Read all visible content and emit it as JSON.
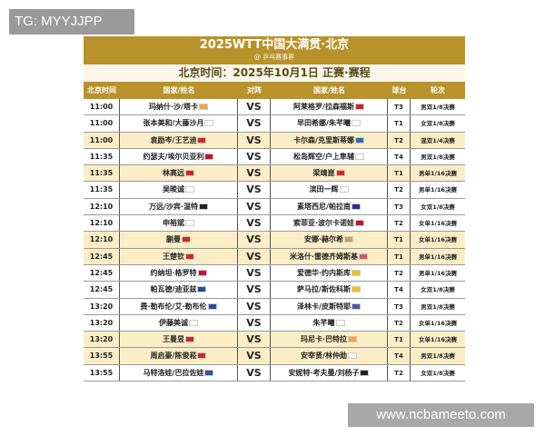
{
  "watermark": "TG: MYYJJPP",
  "site": "www.ncbameeto.com",
  "title": "2025WTT中国大满贯·北京",
  "credit": "@ 乒乓赛事界",
  "date_line": "北京时间：2025年10月1日 正赛·赛程",
  "headers": [
    "北京时间",
    "国家/姓名",
    "对阵",
    "国家/姓名",
    "球台",
    "轮次"
  ],
  "colors": {
    "gold": "#b8922a",
    "highlight": "#fbeec7"
  },
  "rows": [
    {
      "time": "11:00",
      "p1": "玛纳什·沙/塔卡",
      "f1": "#f4a340",
      "vs": "VS",
      "p2": "阿莱格罗/拉森福斯",
      "f2": "#d0202a",
      "table": "T3",
      "round": "男双1/8决赛",
      "hl": false
    },
    {
      "time": "11:00",
      "p1": "张本美和/大藤沙月",
      "f1": "#ffffff",
      "vs": "VS",
      "p2": "早田希娜/朱芊曦",
      "f2": "#ffffff",
      "table": "T1",
      "round": "女双1/8决赛",
      "hl": false
    },
    {
      "time": "11:00",
      "p1": "袁励岑/王艺迪",
      "f1": "#d8261c",
      "vs": "VS",
      "p2": "卡尔森/克里斯蒂娜",
      "f2": "#2a6fb0",
      "table": "T2",
      "round": "混双1/4决赛",
      "hl": true
    },
    {
      "time": "11:35",
      "p1": "约瑟夫/埃尔贝亚利",
      "f1": "#c8102e",
      "vs": "VS",
      "p2": "松岛辉空/户上隼辅",
      "f2": "#ffffff",
      "table": "T4",
      "round": "男双1/8决赛",
      "hl": false
    },
    {
      "time": "11:35",
      "p1": "林高远",
      "f1": "#d8261c",
      "vs": "VS",
      "p2": "梁靖崑",
      "f2": "#d8261c",
      "table": "T1",
      "round": "男单1/16决赛",
      "hl": true
    },
    {
      "time": "11:35",
      "p1": "吴晙诚",
      "f1": "#ffffff",
      "vs": "VS",
      "p2": "滨田一辉",
      "f2": "#ffffff",
      "table": "T2",
      "round": "男单1/16决赛",
      "hl": false
    },
    {
      "time": "12:10",
      "p1": "万远/沙宾·温特",
      "f1": "#222222",
      "vs": "VS",
      "p2": "素塔西尼/帕拉南",
      "f2": "#2d2a8a",
      "table": "T3",
      "round": "女双1/8决赛",
      "hl": false
    },
    {
      "time": "12:10",
      "p1": "申裕斌",
      "f1": "#ffffff",
      "vs": "VS",
      "p2": "索菲亚·波尔卡诺娃",
      "f2": "#c8102e",
      "table": "T2",
      "round": "女单1/16决赛",
      "hl": false
    },
    {
      "time": "12:10",
      "p1": "蒯曼",
      "f1": "#d8261c",
      "vs": "VS",
      "p2": "安娜·赫尔希",
      "f2": "#c8a060",
      "table": "T1",
      "round": "女单1/16决赛",
      "hl": true
    },
    {
      "time": "12:45",
      "p1": "王楚钦",
      "f1": "#d8261c",
      "vs": "VS",
      "p2": "米洛什·雷德齐姆斯基",
      "f2": "#e05060",
      "table": "T1",
      "round": "男单1/16决赛",
      "hl": true
    },
    {
      "time": "12:45",
      "p1": "约纳坦·格罗特",
      "f1": "#c8102e",
      "vs": "VS",
      "p2": "爱德华·约内斯库",
      "f2": "#f0c020",
      "table": "T2",
      "round": "男单1/16决赛",
      "hl": false
    },
    {
      "time": "12:45",
      "p1": "帕瓦德/迪亚兹",
      "f1": "#2050a0",
      "vs": "VS",
      "p2": "萨马拉/斯佐科斯",
      "f2": "#f0c020",
      "table": "T4",
      "round": "女双1/8决赛",
      "hl": false
    },
    {
      "time": "13:20",
      "p1": "费·勒布伦/艾·勒布伦",
      "f1": "#2050a0",
      "vs": "VS",
      "p2": "泽林卡/皮斯特耶",
      "f2": "#4060a0",
      "table": "T3",
      "round": "男双1/8决赛",
      "hl": false
    },
    {
      "time": "13:20",
      "p1": "伊藤美诚",
      "f1": "#ffffff",
      "vs": "VS",
      "p2": "朱芊曦",
      "f2": "#ffffff",
      "table": "T2",
      "round": "女单1/16决赛",
      "hl": false
    },
    {
      "time": "13:20",
      "p1": "王曼昱",
      "f1": "#d8261c",
      "vs": "VS",
      "p2": "玛尼卡·巴特拉",
      "f2": "#f4a340",
      "table": "T1",
      "round": "女单1/16决赛",
      "hl": true
    },
    {
      "time": "13:55",
      "p1": "周启豪/陈俊菘",
      "f1": "#d8261c",
      "vs": "VS",
      "p2": "安宰贤/林仲勋",
      "f2": "#ffffff",
      "table": "T4",
      "round": "男双1/8决赛",
      "hl": true
    },
    {
      "time": "13:55",
      "p1": "马特洛娃/巴拉佐娃",
      "f1": "#3050a0",
      "vs": "VS",
      "p2": "安妮特·考夫曼/刘杨子",
      "f2": "#222222",
      "table": "T2",
      "round": "女双1/8决赛",
      "hl": false
    }
  ]
}
